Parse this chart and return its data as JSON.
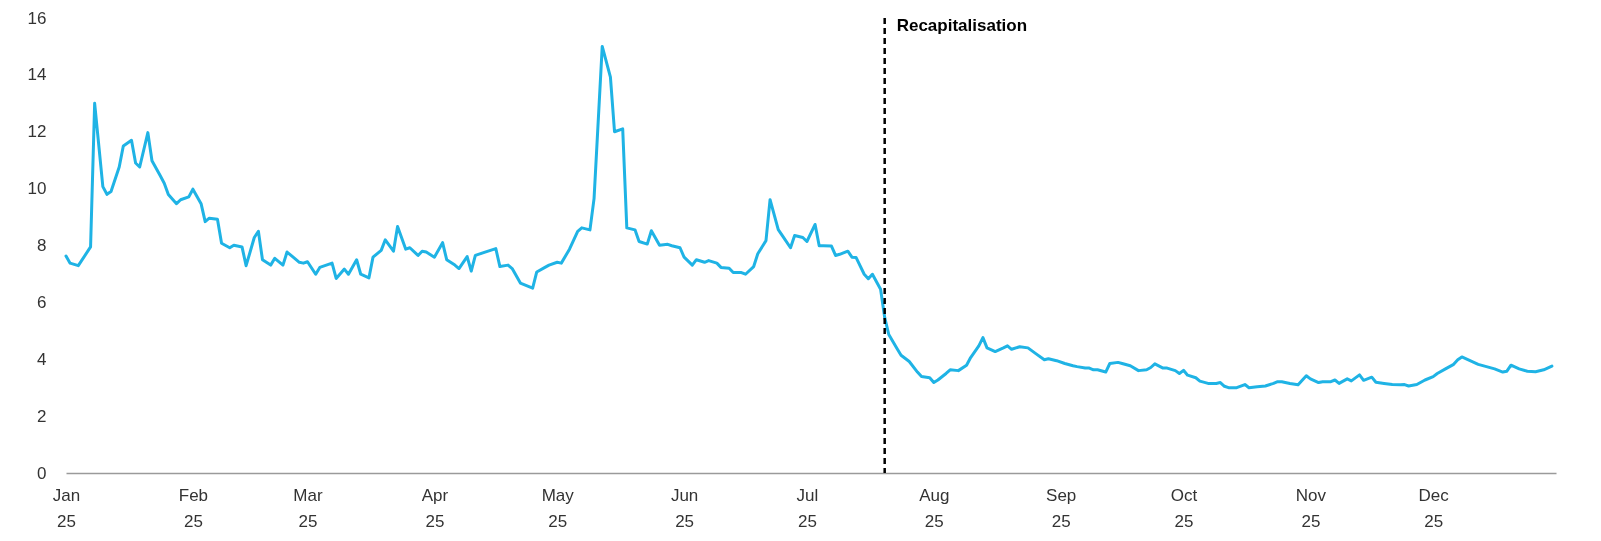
{
  "chart_data": {
    "type": "line",
    "x": [
      "2025-01-01",
      "2025-01-02",
      "2025-01-04",
      "2025-01-07",
      "2025-01-08",
      "2025-01-10",
      "2025-01-11",
      "2025-01-12",
      "2025-01-14",
      "2025-01-15",
      "2025-01-17",
      "2025-01-18",
      "2025-01-19",
      "2025-01-21",
      "2025-01-22",
      "2025-01-24",
      "2025-01-25",
      "2025-01-26",
      "2025-01-28",
      "2025-01-29",
      "2025-01-31",
      "2025-02-01",
      "2025-02-03",
      "2025-02-04",
      "2025-02-05",
      "2025-02-07",
      "2025-02-08",
      "2025-02-10",
      "2025-02-11",
      "2025-02-13",
      "2025-02-14",
      "2025-02-16",
      "2025-02-17",
      "2025-02-18",
      "2025-02-20",
      "2025-02-21",
      "2025-02-23",
      "2025-02-24",
      "2025-02-26",
      "2025-02-27",
      "2025-02-28",
      "2025-03-01",
      "2025-03-03",
      "2025-03-04",
      "2025-03-07",
      "2025-03-08",
      "2025-03-10",
      "2025-03-11",
      "2025-03-13",
      "2025-03-14",
      "2025-03-16",
      "2025-03-17",
      "2025-03-19",
      "2025-03-20",
      "2025-03-22",
      "2025-03-23",
      "2025-03-25",
      "2025-03-26",
      "2025-03-28",
      "2025-03-29",
      "2025-03-30",
      "2025-04-01",
      "2025-04-03",
      "2025-04-04",
      "2025-04-06",
      "2025-04-07",
      "2025-04-09",
      "2025-04-10",
      "2025-04-11",
      "2025-04-13",
      "2025-04-16",
      "2025-04-17",
      "2025-04-19",
      "2025-04-20",
      "2025-04-22",
      "2025-04-25",
      "2025-04-26",
      "2025-04-28",
      "2025-04-29",
      "2025-05-01",
      "2025-05-02",
      "2025-05-04",
      "2025-05-06",
      "2025-05-07",
      "2025-05-09",
      "2025-05-10",
      "2025-05-12",
      "2025-05-14",
      "2025-05-15",
      "2025-05-17",
      "2025-05-18",
      "2025-05-20",
      "2025-05-21",
      "2025-05-23",
      "2025-05-24",
      "2025-05-26",
      "2025-05-28",
      "2025-05-29",
      "2025-05-31",
      "2025-06-01",
      "2025-06-03",
      "2025-06-04",
      "2025-06-06",
      "2025-06-07",
      "2025-06-09",
      "2025-06-10",
      "2025-06-12",
      "2025-06-13",
      "2025-06-15",
      "2025-06-16",
      "2025-06-18",
      "2025-06-19",
      "2025-06-21",
      "2025-06-22",
      "2025-06-24",
      "2025-06-25",
      "2025-06-27",
      "2025-06-28",
      "2025-06-30",
      "2025-07-01",
      "2025-07-03",
      "2025-07-04",
      "2025-07-05",
      "2025-07-07",
      "2025-07-08",
      "2025-07-09",
      "2025-07-11",
      "2025-07-12",
      "2025-07-13",
      "2025-07-15",
      "2025-07-16",
      "2025-07-17",
      "2025-07-19",
      "2025-07-20",
      "2025-07-21",
      "2025-07-23",
      "2025-07-24",
      "2025-07-26",
      "2025-07-28",
      "2025-07-29",
      "2025-07-31",
      "2025-08-01",
      "2025-08-02",
      "2025-08-04",
      "2025-08-05",
      "2025-08-07",
      "2025-08-09",
      "2025-08-10",
      "2025-08-12",
      "2025-08-13",
      "2025-08-14",
      "2025-08-16",
      "2025-08-18",
      "2025-08-19",
      "2025-08-20",
      "2025-08-22",
      "2025-08-24",
      "2025-08-26",
      "2025-08-28",
      "2025-08-29",
      "2025-08-31",
      "2025-09-02",
      "2025-09-04",
      "2025-09-05",
      "2025-09-07",
      "2025-09-08",
      "2025-09-09",
      "2025-09-10",
      "2025-09-12",
      "2025-09-13",
      "2025-09-15",
      "2025-09-16",
      "2025-09-18",
      "2025-09-20",
      "2025-09-22",
      "2025-09-23",
      "2025-09-24",
      "2025-09-26",
      "2025-09-27",
      "2025-09-29",
      "2025-09-30",
      "2025-10-01",
      "2025-10-02",
      "2025-10-04",
      "2025-10-05",
      "2025-10-07",
      "2025-10-09",
      "2025-10-10",
      "2025-10-11",
      "2025-10-12",
      "2025-10-14",
      "2025-10-16",
      "2025-10-17",
      "2025-10-19",
      "2025-10-21",
      "2025-10-23",
      "2025-10-24",
      "2025-10-25",
      "2025-10-27",
      "2025-10-29",
      "2025-10-31",
      "2025-11-01",
      "2025-11-03",
      "2025-11-04",
      "2025-11-06",
      "2025-11-07",
      "2025-11-08",
      "2025-11-10",
      "2025-11-11",
      "2025-11-13",
      "2025-11-14",
      "2025-11-16",
      "2025-11-17",
      "2025-11-19",
      "2025-11-21",
      "2025-11-23",
      "2025-11-24",
      "2025-11-25",
      "2025-11-27",
      "2025-11-29",
      "2025-12-01",
      "2025-12-02",
      "2025-12-04",
      "2025-12-06",
      "2025-12-07",
      "2025-12-08",
      "2025-12-10",
      "2025-12-12",
      "2025-12-14",
      "2025-12-16",
      "2025-12-18",
      "2025-12-19",
      "2025-12-20",
      "2025-12-22",
      "2025-12-24",
      "2025-12-26",
      "2025-12-28",
      "2025-12-30"
    ],
    "series": [
      {
        "color": "#1fb3e5",
        "values": [
          7.63,
          7.38,
          7.29,
          7.95,
          13.0,
          10.07,
          9.8,
          9.9,
          10.76,
          11.5,
          11.7,
          10.9,
          10.76,
          11.97,
          10.98,
          10.46,
          10.19,
          9.79,
          9.47,
          9.61,
          9.71,
          9.98,
          9.47,
          8.84,
          8.96,
          8.92,
          8.08,
          7.92,
          8.01,
          7.95,
          7.29,
          8.28,
          8.5,
          7.5,
          7.31,
          7.55,
          7.31,
          7.77,
          7.53,
          7.41,
          7.38,
          7.43,
          6.99,
          7.23,
          7.38,
          6.84,
          7.17,
          6.99,
          7.5,
          6.99,
          6.86,
          7.59,
          7.83,
          8.2,
          7.8,
          8.67,
          7.87,
          7.92,
          7.65,
          7.8,
          7.77,
          7.59,
          8.1,
          7.5,
          7.31,
          7.19,
          7.61,
          7.1,
          7.65,
          7.75,
          7.89,
          7.26,
          7.31,
          7.19,
          6.68,
          6.5,
          7.07,
          7.23,
          7.31,
          7.41,
          7.38,
          7.87,
          8.5,
          8.62,
          8.55,
          9.65,
          15.0,
          13.92,
          12.0,
          12.1,
          8.62,
          8.55,
          8.14,
          8.05,
          8.52,
          8.01,
          8.04,
          7.99,
          7.92,
          7.59,
          7.31,
          7.5,
          7.41,
          7.47,
          7.38,
          7.23,
          7.2,
          7.05,
          7.05,
          6.99,
          7.26,
          7.71,
          8.17,
          9.61,
          8.56,
          8.35,
          7.92,
          8.35,
          8.28,
          8.14,
          8.74,
          7.99,
          7.99,
          7.98,
          7.65,
          7.69,
          7.8,
          7.59,
          7.58,
          6.99,
          6.83,
          6.99,
          6.46,
          5.47,
          4.87,
          4.38,
          4.14,
          3.92,
          3.55,
          3.39,
          3.35,
          3.18,
          3.27,
          3.5,
          3.63,
          3.6,
          3.79,
          4.06,
          4.47,
          4.76,
          4.4,
          4.27,
          4.4,
          4.47,
          4.35,
          4.44,
          4.4,
          4.19,
          3.98,
          4.02,
          3.95,
          3.85,
          3.77,
          3.74,
          3.69,
          3.69,
          3.63,
          3.63,
          3.55,
          3.85,
          3.89,
          3.85,
          3.77,
          3.6,
          3.63,
          3.71,
          3.84,
          3.69,
          3.69,
          3.6,
          3.5,
          3.61,
          3.44,
          3.35,
          3.23,
          3.15,
          3.15,
          3.18,
          3.05,
          3.0,
          3.0,
          3.11,
          3.0,
          3.03,
          3.06,
          3.15,
          3.21,
          3.21,
          3.15,
          3.1,
          3.42,
          3.31,
          3.18,
          3.21,
          3.21,
          3.27,
          3.15,
          3.31,
          3.24,
          3.45,
          3.26,
          3.37,
          3.19,
          3.15,
          3.11,
          3.1,
          3.11,
          3.06,
          3.11,
          3.27,
          3.39,
          3.5,
          3.66,
          3.82,
          3.98,
          4.08,
          3.95,
          3.82,
          3.74,
          3.66,
          3.55,
          3.58,
          3.79,
          3.66,
          3.58,
          3.56,
          3.63,
          3.76
        ]
      }
    ],
    "xlim": [
      "2025-01-01",
      "2025-12-31"
    ],
    "xticks": [
      {
        "value": "2025-01-01",
        "label": "Jan 25"
      },
      {
        "value": "2025-02-01",
        "label": "Feb 25"
      },
      {
        "value": "2025-03-01",
        "label": "Mar 25"
      },
      {
        "value": "2025-04-01",
        "label": "Apr 25"
      },
      {
        "value": "2025-05-01",
        "label": "May 25"
      },
      {
        "value": "2025-06-01",
        "label": "Jun 25"
      },
      {
        "value": "2025-07-01",
        "label": "Jul 25"
      },
      {
        "value": "2025-08-01",
        "label": "Aug 25"
      },
      {
        "value": "2025-09-01",
        "label": "Sep 25"
      },
      {
        "value": "2025-10-01",
        "label": "Oct 25"
      },
      {
        "value": "2025-11-01",
        "label": "Nov 25"
      },
      {
        "value": "2025-12-01",
        "label": "Dec 25"
      }
    ],
    "ylim": [
      0,
      16
    ],
    "yticks": [
      0,
      2,
      4,
      6,
      8,
      10,
      12,
      14,
      16
    ],
    "ref_lines": [
      {
        "axis": "x",
        "value": "2025-07-20",
        "label": "Recapitalisation",
        "color": "#000000",
        "line_style": "dashed"
      }
    ]
  }
}
